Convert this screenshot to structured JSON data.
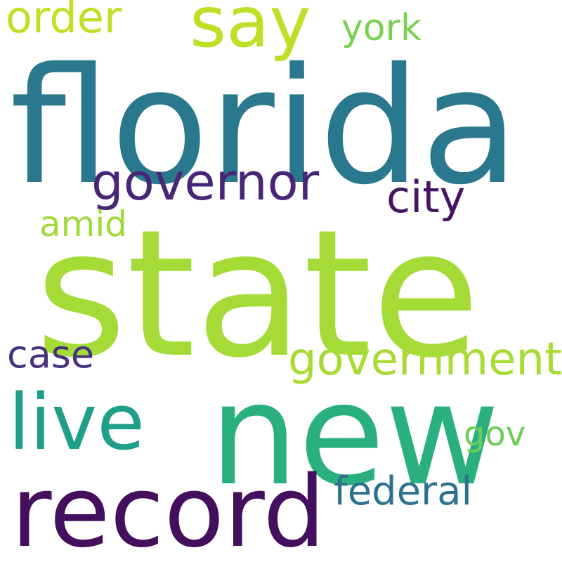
{
  "words": [
    {
      "key": "florida",
      "text": "florida",
      "color": "#2a788e"
    },
    {
      "key": "state",
      "text": "state",
      "color": "#a5db36"
    },
    {
      "key": "new",
      "text": "new",
      "color": "#2ab07f"
    },
    {
      "key": "record",
      "text": "record",
      "color": "#440f5c"
    },
    {
      "key": "live",
      "text": "live",
      "color": "#1f9e89"
    },
    {
      "key": "say",
      "text": "say",
      "color": "#bddf26"
    },
    {
      "key": "governor",
      "text": "governor",
      "color": "#482576"
    },
    {
      "key": "government",
      "text": "government",
      "color": "#a8db34"
    },
    {
      "key": "order",
      "text": "order",
      "color": "#c2df23"
    },
    {
      "key": "city",
      "text": "city",
      "color": "#471365"
    },
    {
      "key": "federal",
      "text": "federal",
      "color": "#2c728e"
    },
    {
      "key": "case",
      "text": "case",
      "color": "#46327e"
    },
    {
      "key": "amid",
      "text": "amid",
      "color": "#a0da39"
    },
    {
      "key": "york",
      "text": "york",
      "color": "#7ad151"
    },
    {
      "key": "gov",
      "text": "gov",
      "color": "#6ccd5a"
    }
  ]
}
